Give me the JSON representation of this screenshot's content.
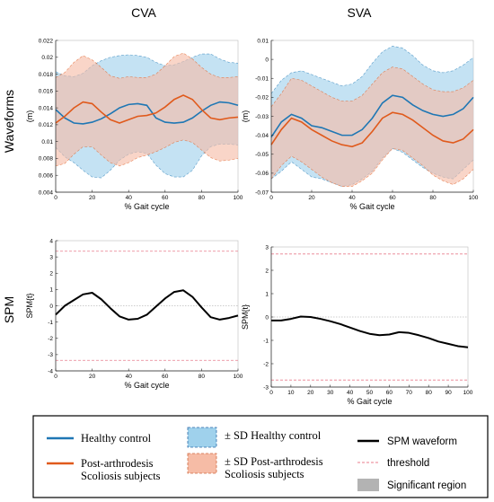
{
  "figure": {
    "col_titles": [
      "CVA",
      "SVA"
    ],
    "row_titles": [
      "Waveforms",
      "SPM"
    ]
  },
  "colors": {
    "healthy": "#1f77b4",
    "healthy_fill": "#9fd1ec",
    "scoliosis": "#e05a1c",
    "scoliosis_fill": "#f6bca6",
    "overlap_fill": "#c9a6a8",
    "spm": "#000000",
    "threshold": "#e87e8e",
    "significant": "#b3b3b3"
  },
  "chart_data": [
    {
      "id": "cva-waveforms",
      "type": "line",
      "xlabel": "% Gait cycle",
      "ylabel": "(m)",
      "xlim": [
        0,
        100
      ],
      "ylim": [
        0.004,
        0.022
      ],
      "xticks": [
        0,
        20,
        40,
        60,
        80,
        100
      ],
      "yticks": [
        0.004,
        0.006,
        0.008,
        0.01,
        0.012,
        0.014,
        0.016,
        0.018,
        0.02,
        0.022
      ],
      "ytick_labels": [
        "0.004",
        "0.006",
        "0.008",
        "0.01",
        "0.012",
        "0.014",
        "0.016",
        "0.018",
        "0.02",
        "0.022"
      ],
      "grid": false,
      "x": [
        0,
        5,
        10,
        15,
        20,
        25,
        30,
        35,
        40,
        45,
        50,
        55,
        60,
        65,
        70,
        75,
        80,
        85,
        90,
        95,
        100
      ],
      "series": [
        {
          "key": "healthy",
          "values": [
            0.0138,
            0.0128,
            0.0122,
            0.0121,
            0.0123,
            0.0127,
            0.0133,
            0.014,
            0.0144,
            0.0145,
            0.0143,
            0.0128,
            0.0123,
            0.0122,
            0.0123,
            0.0128,
            0.0136,
            0.0143,
            0.0147,
            0.0146,
            0.0143
          ],
          "upper": [
            0.0183,
            0.0178,
            0.0177,
            0.0181,
            0.019,
            0.0196,
            0.02,
            0.0202,
            0.0203,
            0.0202,
            0.02,
            0.0194,
            0.019,
            0.0191,
            0.0195,
            0.02,
            0.0204,
            0.0204,
            0.0198,
            0.0194,
            0.0193
          ],
          "lower": [
            0.0093,
            0.0082,
            0.0075,
            0.0066,
            0.0058,
            0.0057,
            0.0066,
            0.0078,
            0.0085,
            0.0088,
            0.0086,
            0.0072,
            0.0062,
            0.0058,
            0.0058,
            0.0066,
            0.0083,
            0.0094,
            0.0097,
            0.0097,
            0.0096
          ]
        },
        {
          "key": "scoliosis",
          "values": [
            0.0122,
            0.013,
            0.014,
            0.0147,
            0.0145,
            0.0135,
            0.0126,
            0.0122,
            0.0126,
            0.013,
            0.0131,
            0.0134,
            0.0141,
            0.015,
            0.0155,
            0.015,
            0.0138,
            0.0128,
            0.0126,
            0.0128,
            0.0129
          ],
          "upper": [
            0.0176,
            0.0182,
            0.0194,
            0.0202,
            0.0197,
            0.0188,
            0.0178,
            0.0175,
            0.0177,
            0.0176,
            0.0176,
            0.018,
            0.019,
            0.0201,
            0.0205,
            0.0198,
            0.0188,
            0.018,
            0.0176,
            0.0176,
            0.0177
          ],
          "lower": [
            0.0071,
            0.0074,
            0.0085,
            0.0094,
            0.0094,
            0.0084,
            0.0075,
            0.0071,
            0.0075,
            0.0081,
            0.0084,
            0.0088,
            0.0093,
            0.0099,
            0.0102,
            0.0099,
            0.009,
            0.0081,
            0.0077,
            0.0078,
            0.008
          ]
        }
      ]
    },
    {
      "id": "sva-waveforms",
      "type": "line",
      "xlabel": "% Gait cycle",
      "ylabel": "(m)",
      "xlim": [
        0,
        100
      ],
      "ylim": [
        -0.07,
        0.01
      ],
      "xticks": [
        0,
        20,
        40,
        60,
        80,
        100
      ],
      "yticks": [
        -0.07,
        -0.06,
        -0.05,
        -0.04,
        -0.03,
        -0.02,
        -0.01,
        0,
        0.01
      ],
      "ytick_labels": [
        "-0.07",
        "-0.06",
        "-0.05",
        "-0.04",
        "-0.03",
        "-0.02",
        "-0.01",
        "0",
        "0.01"
      ],
      "grid": false,
      "x": [
        0,
        5,
        10,
        15,
        20,
        25,
        30,
        35,
        40,
        45,
        50,
        55,
        60,
        65,
        70,
        75,
        80,
        85,
        90,
        95,
        100
      ],
      "series": [
        {
          "key": "healthy",
          "values": [
            -0.041,
            -0.033,
            -0.029,
            -0.031,
            -0.035,
            -0.036,
            -0.038,
            -0.04,
            -0.04,
            -0.037,
            -0.031,
            -0.023,
            -0.019,
            -0.02,
            -0.024,
            -0.027,
            -0.029,
            -0.03,
            -0.029,
            -0.026,
            -0.02
          ],
          "upper": [
            -0.018,
            -0.011,
            -0.007,
            -0.006,
            -0.008,
            -0.01,
            -0.012,
            -0.014,
            -0.013,
            -0.009,
            -0.002,
            0.004,
            0.007,
            0.006,
            0.002,
            -0.003,
            -0.006,
            -0.007,
            -0.006,
            -0.003,
            0.001
          ],
          "lower": [
            -0.063,
            -0.059,
            -0.054,
            -0.058,
            -0.062,
            -0.063,
            -0.065,
            -0.067,
            -0.066,
            -0.063,
            -0.059,
            -0.052,
            -0.047,
            -0.049,
            -0.053,
            -0.057,
            -0.06,
            -0.062,
            -0.063,
            -0.058,
            -0.053
          ]
        },
        {
          "key": "scoliosis",
          "values": [
            -0.045,
            -0.037,
            -0.031,
            -0.033,
            -0.037,
            -0.04,
            -0.043,
            -0.045,
            -0.046,
            -0.044,
            -0.038,
            -0.031,
            -0.028,
            -0.029,
            -0.032,
            -0.036,
            -0.04,
            -0.043,
            -0.044,
            -0.042,
            -0.037
          ],
          "upper": [
            -0.025,
            -0.018,
            -0.01,
            -0.011,
            -0.014,
            -0.017,
            -0.02,
            -0.022,
            -0.022,
            -0.019,
            -0.013,
            -0.007,
            -0.004,
            -0.005,
            -0.009,
            -0.013,
            -0.016,
            -0.017,
            -0.017,
            -0.015,
            -0.011
          ],
          "lower": [
            -0.063,
            -0.056,
            -0.051,
            -0.054,
            -0.058,
            -0.062,
            -0.065,
            -0.067,
            -0.067,
            -0.064,
            -0.06,
            -0.053,
            -0.047,
            -0.048,
            -0.052,
            -0.056,
            -0.061,
            -0.064,
            -0.066,
            -0.063,
            -0.058
          ]
        }
      ]
    },
    {
      "id": "cva-spm",
      "type": "line",
      "xlabel": "% Gait cycle",
      "ylabel": "SPM{t}",
      "xlim": [
        0,
        100
      ],
      "ylim": [
        -4,
        4
      ],
      "xticks": [
        0,
        20,
        40,
        60,
        80,
        100
      ],
      "yticks": [
        -4,
        -3,
        -2,
        -1,
        0,
        1,
        2,
        3,
        4
      ],
      "ytick_labels": [
        "-4",
        "-3",
        "-2",
        "-1",
        "0",
        "1",
        "2",
        "3",
        "4"
      ],
      "threshold": 3.35,
      "grid": false,
      "x": [
        0,
        5,
        10,
        15,
        20,
        25,
        30,
        35,
        40,
        45,
        50,
        55,
        60,
        65,
        70,
        75,
        80,
        85,
        90,
        95,
        100
      ],
      "series": [
        {
          "key": "spm",
          "values": [
            -0.55,
            0.0,
            0.35,
            0.7,
            0.8,
            0.4,
            -0.15,
            -0.65,
            -0.85,
            -0.8,
            -0.55,
            -0.05,
            0.45,
            0.85,
            0.95,
            0.55,
            -0.1,
            -0.7,
            -0.85,
            -0.75,
            -0.6
          ]
        }
      ]
    },
    {
      "id": "sva-spm",
      "type": "line",
      "xlabel": "% Gait cycle",
      "ylabel": "SPM{t}",
      "xlim": [
        0,
        100
      ],
      "ylim": [
        -3,
        3
      ],
      "xticks": [
        0,
        10,
        20,
        30,
        40,
        50,
        60,
        70,
        80,
        90,
        100
      ],
      "yticks": [
        -3,
        -2,
        -1,
        0,
        1,
        2,
        3
      ],
      "ytick_labels": [
        "-3",
        "-2",
        "-1",
        "0",
        "1",
        "2",
        "3"
      ],
      "threshold": 2.7,
      "grid": false,
      "x": [
        0,
        5,
        10,
        15,
        20,
        25,
        30,
        35,
        40,
        45,
        50,
        55,
        60,
        65,
        70,
        75,
        80,
        85,
        90,
        95,
        100
      ],
      "series": [
        {
          "key": "spm",
          "values": [
            -0.15,
            -0.15,
            -0.08,
            0.02,
            0.0,
            -0.08,
            -0.18,
            -0.3,
            -0.45,
            -0.6,
            -0.72,
            -0.78,
            -0.75,
            -0.65,
            -0.68,
            -0.78,
            -0.9,
            -1.05,
            -1.15,
            -1.25,
            -1.3
          ]
        }
      ]
    }
  ],
  "legend": {
    "healthy_label": "Healthy control",
    "scoliosis_label_1": "Post-arthrodesis",
    "scoliosis_label_2": "Scoliosis subjects",
    "sd_healthy_label": "± SD Healthy control",
    "sd_scoliosis_label_1": "± SD  Post-arthrodesis",
    "sd_scoliosis_label_2": "Scoliosis subjects",
    "spm_label": "SPM waveform",
    "threshold_label": "threshold",
    "significant_label": "Significant region"
  }
}
